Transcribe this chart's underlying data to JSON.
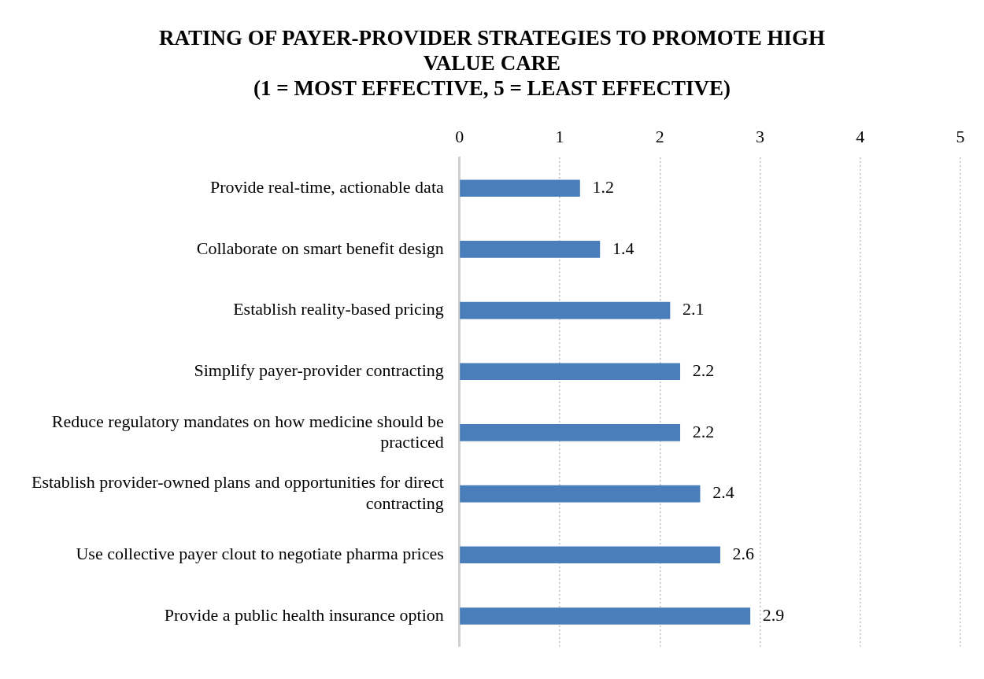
{
  "chart_data": {
    "type": "bar",
    "orientation": "horizontal",
    "title": "RATING OF PAYER-PROVIDER STRATEGIES TO PROMOTE HIGH VALUE CARE\n(1 = MOST EFFECTIVE, 5 = LEAST EFFECTIVE)",
    "categories": [
      "Provide real-time, actionable data",
      "Collaborate on smart benefit design",
      "Establish reality-based pricing",
      "Simplify payer-provider contracting",
      "Reduce regulatory mandates on how medicine should be practiced",
      "Establish provider-owned plans and opportunities for direct contracting",
      "Use collective payer clout to negotiate pharma prices",
      "Provide a public health insurance option"
    ],
    "values": [
      1.2,
      1.4,
      2.1,
      2.2,
      2.2,
      2.4,
      2.6,
      2.9
    ],
    "color": "#4a7ebb",
    "xlim": [
      0,
      5
    ],
    "xticks": [
      0,
      1,
      2,
      3,
      4,
      5
    ],
    "grid": "x",
    "data_labels": true,
    "legend": false
  }
}
